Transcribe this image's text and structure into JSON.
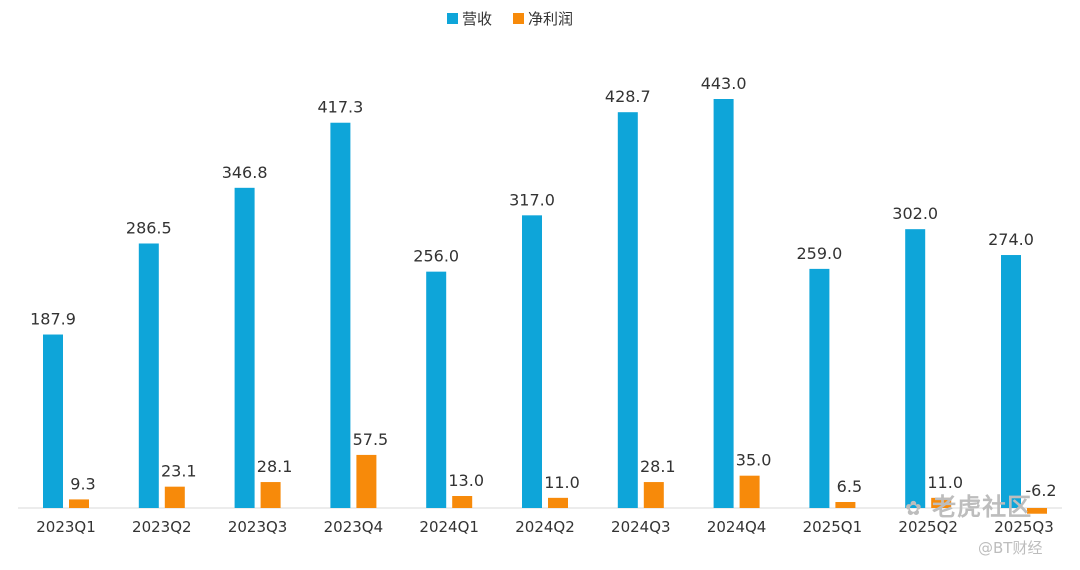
{
  "chart_data": {
    "type": "bar",
    "categories": [
      "2023Q1",
      "2023Q2",
      "2023Q3",
      "2023Q4",
      "2024Q1",
      "2024Q2",
      "2024Q3",
      "2024Q4",
      "2025Q1",
      "2025Q2",
      "2025Q3"
    ],
    "series": [
      {
        "name": "营收",
        "color": "#0ea5d9",
        "values": [
          187.9,
          286.5,
          346.8,
          417.3,
          256.0,
          317.0,
          428.7,
          443.0,
          259.0,
          302.0,
          274.0
        ],
        "labels": [
          "187.9",
          "286.5",
          "346.8",
          "417.3",
          "256.0",
          "317.0",
          "428.7",
          "443.0",
          "259.0",
          "302.0",
          "274.0"
        ]
      },
      {
        "name": "净利润",
        "color": "#f78a0a",
        "values": [
          9.3,
          23.1,
          28.1,
          57.5,
          13.0,
          11.0,
          28.1,
          35.0,
          6.5,
          11.0,
          -6.2
        ],
        "labels": [
          "9.3",
          "23.1",
          "28.1",
          "57.5",
          "13.0",
          "11.0",
          "28.1",
          "35.0",
          "6.5",
          "11.0",
          "-6.2"
        ]
      }
    ],
    "legend_position": "top-center",
    "grid": false
  },
  "watermarks": {
    "community": "老虎社区",
    "source": "@BT财经"
  }
}
